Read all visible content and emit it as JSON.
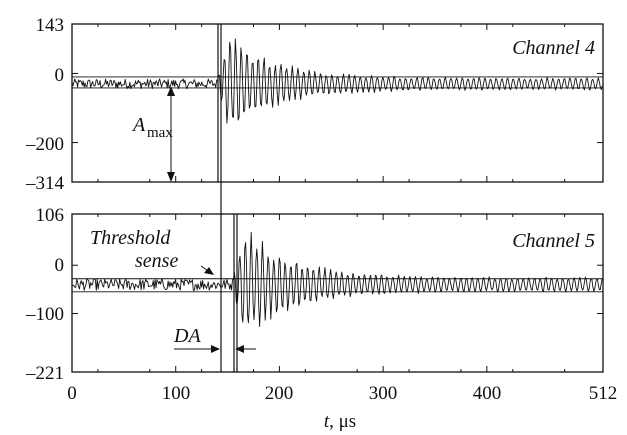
{
  "chart_data": {
    "type": "line",
    "xlabel": "t, μs",
    "xlabel_italic": "t",
    "xlabel_unit": ", μs",
    "xlim": [
      0,
      512
    ],
    "x_ticks": [
      0,
      100,
      200,
      300,
      400,
      512
    ],
    "x_tick_labels": [
      "0",
      "100",
      "200",
      "300",
      "400",
      "512"
    ],
    "panels": [
      {
        "id": "ch4",
        "label": "Channel 4",
        "ylim": [
          -314,
          143
        ],
        "y_ticks": [
          143,
          0,
          -200,
          -314
        ],
        "y_tick_labels": [
          "143",
          "0",
          "–200",
          "–314"
        ],
        "baseline": -30,
        "noise_band": [
          -42,
          -10
        ],
        "onset": 140,
        "peak_positive": 143,
        "peak_negative": -314,
        "ringdown_end": 512,
        "annotations": {
          "amplitude_label": "A",
          "amplitude_subscript": "max"
        }
      },
      {
        "id": "ch5",
        "label": "Channel 5",
        "ylim": [
          -221,
          106
        ],
        "y_ticks": [
          106,
          0,
          -100,
          -221
        ],
        "y_tick_labels": [
          "106",
          "0",
          "–100",
          "–221"
        ],
        "baseline": -40,
        "noise_band": [
          -55,
          -28
        ],
        "onset": 155,
        "peak_positive": 106,
        "peak_negative": -221,
        "ringdown_end": 512,
        "annotations": {
          "threshold_label_1": "Threshold",
          "threshold_label_2": "sense",
          "delay_label": "DA"
        }
      }
    ]
  }
}
